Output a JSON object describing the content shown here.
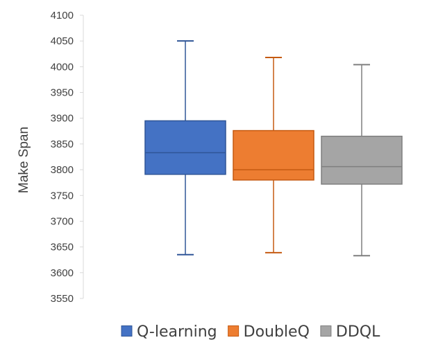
{
  "chart_data": {
    "type": "box",
    "title": "",
    "xlabel": "",
    "ylabel": "Make Span",
    "ylim": [
      3550,
      4100
    ],
    "yticks": [
      3550,
      3600,
      3650,
      3700,
      3750,
      3800,
      3850,
      3900,
      3950,
      4000,
      4050,
      4100
    ],
    "grid": false,
    "legend_position": "bottom",
    "series": [
      {
        "name": "Q-learning",
        "color": "#4472C4",
        "stroke": "#2F5597",
        "min": 3635,
        "q1": 3791,
        "median": 3833,
        "q3": 3895,
        "max": 4050
      },
      {
        "name": "DoubleQ",
        "color": "#ED7D31",
        "stroke": "#C55A11",
        "min": 3639,
        "q1": 3780,
        "median": 3800,
        "q3": 3876,
        "max": 4018
      },
      {
        "name": "DDQL",
        "color": "#A5A5A5",
        "stroke": "#7F7F7F",
        "min": 3633,
        "q1": 3772,
        "median": 3806,
        "q3": 3865,
        "max": 4004
      }
    ]
  }
}
